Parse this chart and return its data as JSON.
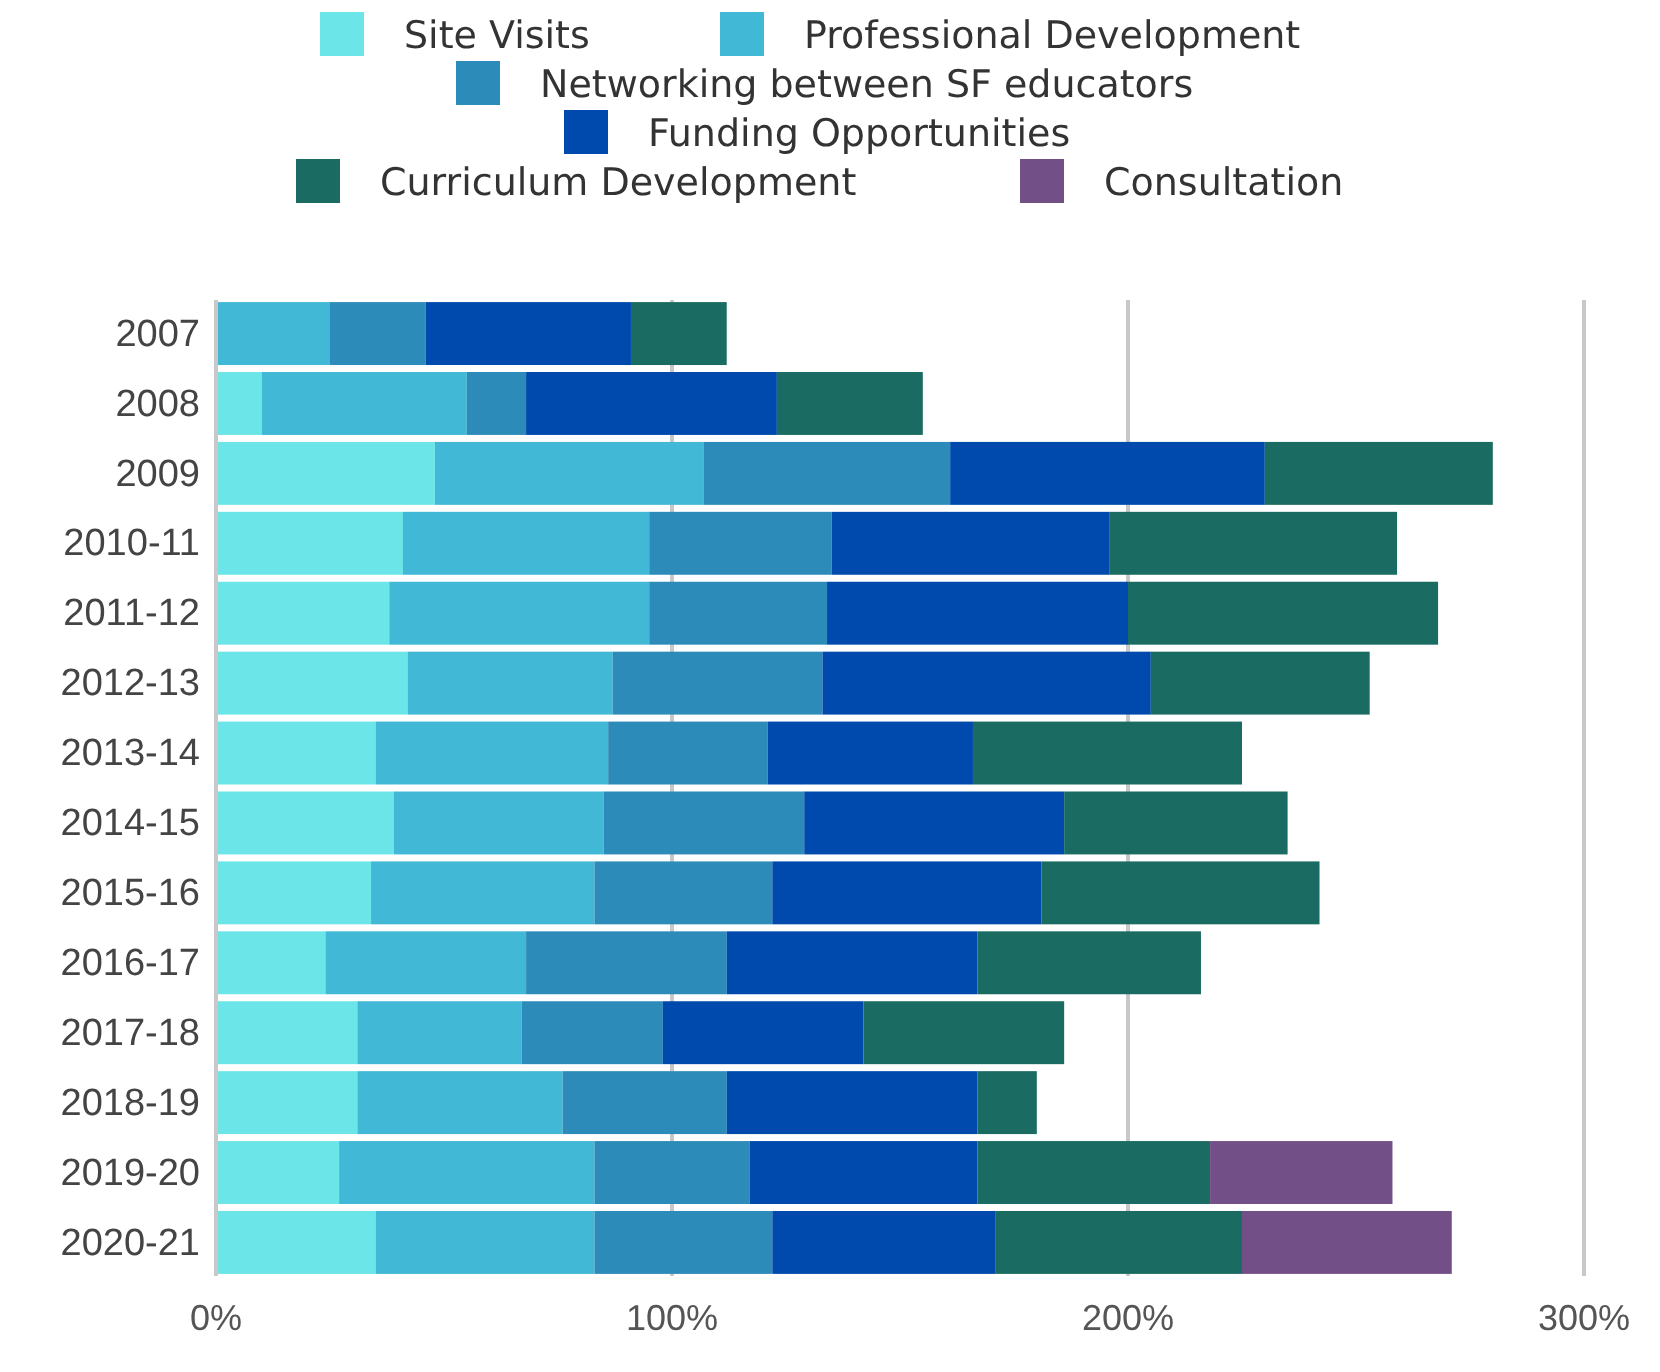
{
  "chart_data": {
    "type": "bar",
    "orientation": "horizontal",
    "stacked": true,
    "legend": "top",
    "grid": "x",
    "categories": [
      "2007",
      "2008",
      "2009",
      "2010-11",
      "2011-12",
      "2012-13",
      "2013-14",
      "2014-15",
      "2015-16",
      "2016-17",
      "2017-18",
      "2018-19",
      "2019-20",
      "2020-21"
    ],
    "xlim": [
      0,
      300
    ],
    "xticks": [
      {
        "value": 0,
        "label": "0%"
      },
      {
        "value": 100,
        "label": "100%"
      },
      {
        "value": 200,
        "label": "200%"
      },
      {
        "value": 300,
        "label": "300%"
      }
    ],
    "series": [
      {
        "name": "Site Visits",
        "color": "#6ce5e8",
        "values": [
          0,
          10,
          48,
          41,
          38,
          42,
          35,
          39,
          34,
          24,
          31,
          31,
          27,
          35
        ]
      },
      {
        "name": "Professional Development",
        "color": "#41b8d5",
        "values": [
          25,
          45,
          59,
          54,
          57,
          45,
          51,
          46,
          49,
          44,
          36,
          45,
          56,
          48
        ]
      },
      {
        "name": "Networking between SF educators",
        "color": "#2d8bba",
        "values": [
          21,
          13,
          54,
          40,
          39,
          46,
          35,
          44,
          39,
          44,
          31,
          36,
          34,
          39
        ]
      },
      {
        "name": "Funding Opportunities",
        "color": "#004aad",
        "values": [
          45,
          55,
          69,
          61,
          66,
          72,
          45,
          57,
          59,
          55,
          44,
          55,
          50,
          49
        ]
      },
      {
        "name": "Curriculum Development",
        "color": "#1a6b62",
        "values": [
          21,
          32,
          50,
          63,
          68,
          48,
          59,
          49,
          61,
          49,
          44,
          13,
          51,
          54
        ]
      },
      {
        "name": "Consultation",
        "color": "#734f88",
        "values": [
          0,
          0,
          0,
          0,
          0,
          0,
          0,
          0,
          0,
          0,
          0,
          0,
          40,
          46
        ]
      }
    ]
  }
}
